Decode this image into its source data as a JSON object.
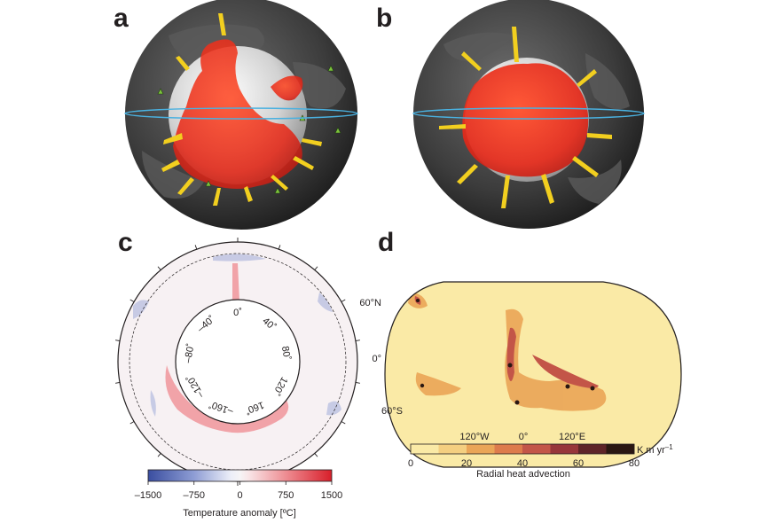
{
  "panels": {
    "a": {
      "label": "a"
    },
    "b": {
      "label": "b"
    },
    "c": {
      "label": "c",
      "angle_labels": [
        "0˚",
        "40˚",
        "80˚",
        "120˚",
        "160˚",
        "–160˚",
        "–120˚",
        "–80˚",
        "–40˚"
      ],
      "colorbar": {
        "ticks": [
          "–1500",
          "–750",
          "0",
          "750",
          "1500"
        ],
        "title": "Temperature anomaly [ºC]",
        "colors": [
          "#3a4ea0",
          "#7b8ccc",
          "#c4cbea",
          "#f5f5f8",
          "#f2b9bd",
          "#e86b74",
          "#d81f2a"
        ]
      }
    },
    "d": {
      "label": "d",
      "lat_labels": [
        "60°N",
        "0°",
        "60°S"
      ],
      "lon_labels": [
        "120°W",
        "0°",
        "120°E"
      ],
      "colorbar": {
        "ticks": [
          "0",
          "20",
          "40",
          "60",
          "80"
        ],
        "unit": "K m yr",
        "unit_exp": "–1",
        "title": "Radial heat advection",
        "colors": [
          "#faeaa6",
          "#f4cf80",
          "#eaa557",
          "#dd7b4c",
          "#c35548",
          "#97363a",
          "#5e2428",
          "#2a1712"
        ]
      }
    }
  }
}
